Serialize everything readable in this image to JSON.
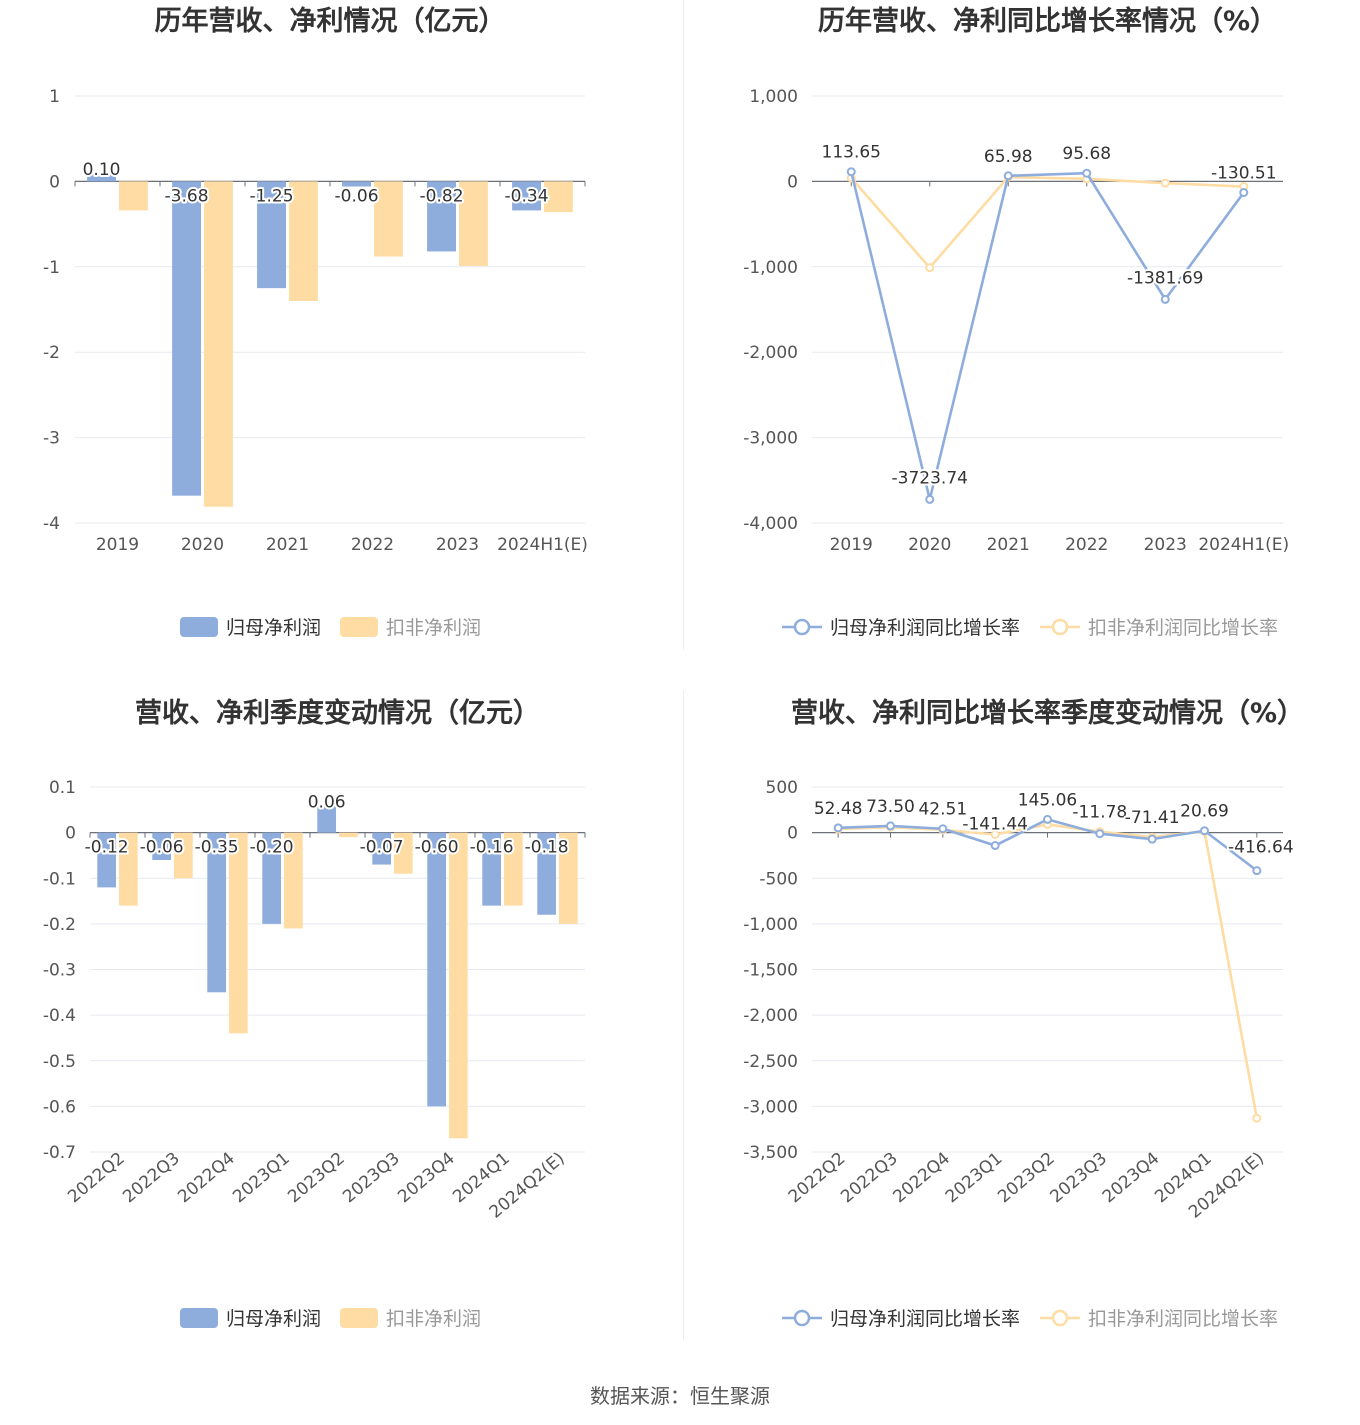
{
  "source_text": "数据来源：恒生聚源",
  "colors": {
    "net_profit": "#8eaddd",
    "deducted_profit": "#fedca3",
    "grid": "#e6e9f1",
    "axis": "#6e7079",
    "label": "#333333"
  },
  "chart_data": [
    {
      "type": "bar",
      "title": "历年营收、净利情况（亿元）",
      "categories": [
        "2019",
        "2020",
        "2021",
        "2022",
        "2023",
        "2024H1(E)"
      ],
      "ylim": [
        -4,
        1
      ],
      "yticks": [
        "1",
        "0",
        "-1",
        "-2",
        "-3",
        "-4"
      ],
      "series": [
        {
          "name": "归母净利润",
          "values": [
            0.1,
            -3.68,
            -1.25,
            -0.06,
            -0.82,
            -0.34
          ],
          "labels": [
            "0.10",
            "-3.68",
            "-1.25",
            "-0.06",
            "-0.82",
            "-0.34"
          ]
        },
        {
          "name": "扣非净利润",
          "values": [
            -0.34,
            -3.81,
            -1.4,
            -0.88,
            -0.99,
            -0.36
          ]
        }
      ]
    },
    {
      "type": "line",
      "title": "历年营收、净利同比增长率情况（%）",
      "categories": [
        "2019",
        "2020",
        "2021",
        "2022",
        "2023",
        "2024H1(E)"
      ],
      "ylim": [
        -4000,
        1000
      ],
      "yticks": [
        "1,000",
        "0",
        "-1,000",
        "-2,000",
        "-3,000",
        "-4,000"
      ],
      "series": [
        {
          "name": "归母净利润同比增长率",
          "values": [
            113.65,
            -3723.74,
            65.98,
            95.68,
            -1381.69,
            -130.51
          ],
          "labels": [
            "113.65",
            "-3723.74",
            "65.98",
            "95.68",
            "-1381.69",
            "-130.51"
          ]
        },
        {
          "name": "扣非净利润同比增长率",
          "values": [
            40,
            -1010,
            50,
            30,
            -20,
            -60
          ]
        }
      ]
    },
    {
      "type": "bar",
      "title": "营收、净利季度变动情况（亿元）",
      "categories": [
        "2022Q2",
        "2022Q3",
        "2022Q4",
        "2023Q1",
        "2023Q2",
        "2023Q3",
        "2023Q4",
        "2024Q1",
        "2024Q2(E)"
      ],
      "ylim": [
        -0.7,
        0.1
      ],
      "yticks": [
        "0.1",
        "0",
        "-0.1",
        "-0.2",
        "-0.3",
        "-0.4",
        "-0.5",
        "-0.6",
        "-0.7"
      ],
      "series": [
        {
          "name": "归母净利润",
          "values": [
            -0.12,
            -0.06,
            -0.35,
            -0.2,
            0.06,
            -0.07,
            -0.6,
            -0.16,
            -0.18
          ],
          "labels": [
            "-0.12",
            "-0.06",
            "-0.35",
            "-0.20",
            "0.06",
            "-0.07",
            "-0.60",
            "-0.16",
            "-0.18"
          ]
        },
        {
          "name": "扣非净利润",
          "values": [
            -0.16,
            -0.1,
            -0.44,
            -0.21,
            -0.01,
            -0.09,
            -0.67,
            -0.16,
            -0.2
          ]
        }
      ]
    },
    {
      "type": "line",
      "title": "营收、净利同比增长率季度变动情况（%）",
      "categories": [
        "2022Q2",
        "2022Q3",
        "2022Q4",
        "2023Q1",
        "2023Q2",
        "2023Q3",
        "2023Q4",
        "2024Q1",
        "2024Q2(E)"
      ],
      "ylim": [
        -3500,
        500
      ],
      "yticks": [
        "500",
        "0",
        "-500",
        "-1,000",
        "-1,500",
        "-2,000",
        "-2,500",
        "-3,000",
        "-3,500"
      ],
      "series": [
        {
          "name": "归母净利润同比增长率",
          "values": [
            52.48,
            73.5,
            42.51,
            -141.44,
            145.06,
            -11.78,
            -71.41,
            20.69,
            -416.64
          ],
          "labels": [
            "52.48",
            "73.50",
            "42.51",
            "-141.44",
            "145.06",
            "-11.78",
            "-71.41",
            "20.69",
            "-416.64"
          ]
        },
        {
          "name": "扣非净利润同比增长率",
          "values": [
            40,
            60,
            30,
            -20,
            90,
            10,
            -50,
            15,
            -3130
          ]
        }
      ]
    }
  ]
}
